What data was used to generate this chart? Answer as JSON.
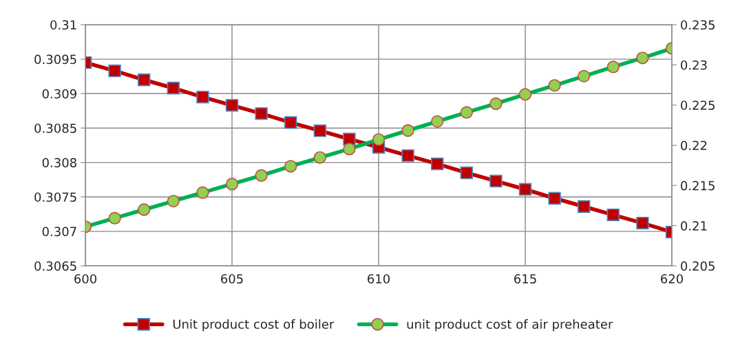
{
  "chart_data": {
    "type": "line",
    "x": [
      600,
      601,
      602,
      603,
      604,
      605,
      606,
      607,
      608,
      609,
      610,
      611,
      612,
      613,
      614,
      615,
      616,
      617,
      618,
      619,
      620
    ],
    "series": [
      {
        "name": "Unit product cost of boiler",
        "color": "#c00000",
        "marker": "square",
        "axis": "y",
        "values": [
          0.30945,
          0.30933,
          0.3092,
          0.30908,
          0.30895,
          0.30883,
          0.30871,
          0.30858,
          0.30846,
          0.30834,
          0.30822,
          0.3081,
          0.30798,
          0.30785,
          0.30773,
          0.30761,
          0.30748,
          0.30736,
          0.30724,
          0.30712,
          0.30699
        ]
      },
      {
        "name": "unit product cost of air preheater",
        "color": "#00b050",
        "marker": "circle",
        "axis": "y2",
        "values": [
          0.20987,
          0.21093,
          0.21199,
          0.21305,
          0.21411,
          0.21518,
          0.21624,
          0.21739,
          0.21848,
          0.21954,
          0.22072,
          0.22184,
          0.22296,
          0.22409,
          0.22518,
          0.22633,
          0.22745,
          0.2286,
          0.22975,
          0.23087,
          0.23205
        ]
      }
    ],
    "xlim": [
      600,
      620
    ],
    "xticks": [
      600,
      605,
      610,
      615,
      620
    ],
    "ylim": [
      0.3065,
      0.31
    ],
    "yticks": [
      0.3065,
      0.307,
      0.3075,
      0.308,
      0.3085,
      0.309,
      0.3095,
      0.31
    ],
    "y2lim": [
      0.205,
      0.235
    ],
    "y2ticks": [
      0.205,
      0.21,
      0.215,
      0.22,
      0.225,
      0.23,
      0.235
    ],
    "grid": true,
    "legend": "bottom",
    "line_style": "solid"
  }
}
